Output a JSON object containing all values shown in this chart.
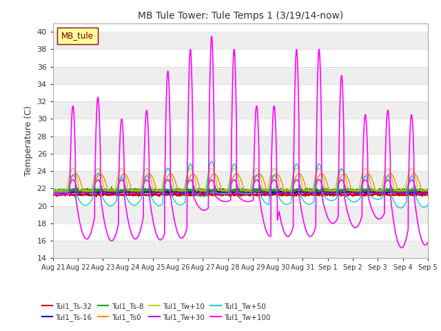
{
  "title": "MB Tule Tower: Tule Temps 1 (3/19/14-now)",
  "ylabel": "Temperature (C)",
  "ylim": [
    14,
    41
  ],
  "yticks": [
    14,
    16,
    18,
    20,
    22,
    24,
    26,
    28,
    30,
    32,
    34,
    36,
    38,
    40
  ],
  "xlabel_dates": [
    "Aug 21",
    "Aug 22",
    "Aug 23",
    "Aug 24",
    "Aug 25",
    "Aug 26",
    "Aug 27",
    "Aug 28",
    "Aug 29",
    "Aug 30",
    "Aug 31",
    "Sep 1",
    "Sep 2",
    "Sep 3",
    "Sep 4",
    "Sep 5"
  ],
  "legend_box_label": "MB_tule",
  "legend_box_color": "#ffff99",
  "legend_box_border": "#880000",
  "series": [
    {
      "label": "Tul1_Ts-32",
      "color": "#cc0000"
    },
    {
      "label": "Tul1_Ts-16",
      "color": "#0000cc"
    },
    {
      "label": "Tul1_Ts-8",
      "color": "#00aa00"
    },
    {
      "label": "Tul1_Ts0",
      "color": "#ff8800"
    },
    {
      "label": "Tul1_Tw+10",
      "color": "#cccc00"
    },
    {
      "label": "Tul1_Tw+30",
      "color": "#cc00cc"
    },
    {
      "label": "Tul1_Tw+50",
      "color": "#00cccc"
    },
    {
      "label": "Tul1_Tw+100",
      "color": "#ff00ff"
    }
  ],
  "bg_color": "#ffffff",
  "grid_color": "#dddddd",
  "n_days": 15,
  "base_temp": 21.3,
  "magenta_peaks": [
    0.8,
    1.8,
    2.75,
    3.75,
    4.6,
    5.5,
    6.35,
    7.25,
    8.15,
    8.85,
    9.75,
    10.65,
    11.55,
    12.5,
    13.4,
    14.35
  ],
  "magenta_peak_heights": [
    31.5,
    32.5,
    30.0,
    31.0,
    35.5,
    38.0,
    39.5,
    38.0,
    31.5,
    31.5,
    38.0,
    38.0,
    35.0,
    30.5,
    31.0,
    30.5
  ],
  "magenta_trough_heights": [
    16.2,
    16.0,
    16.2,
    16.1,
    16.3,
    19.5,
    20.5,
    20.5,
    16.5,
    16.5,
    16.5,
    18.0,
    17.5,
    18.5,
    15.2,
    15.5
  ]
}
